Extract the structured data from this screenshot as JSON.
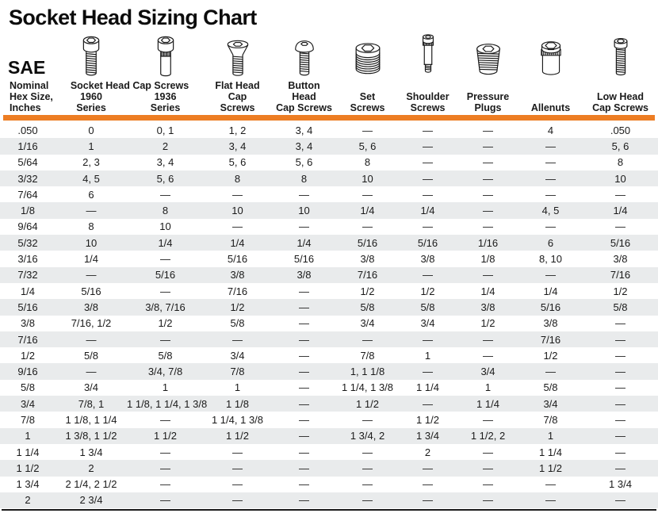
{
  "title": "Socket Head Sizing Chart",
  "standard_label": "SAE",
  "colors": {
    "accent": "#ED7D23",
    "stripe": "#E9EBEC",
    "rule": "#1a1a1a"
  },
  "header": {
    "group_label": "Socket Head Cap Screws",
    "columns": [
      {
        "id": "hex-size",
        "lines": [
          "Nominal",
          "Hex Size,",
          "Inches"
        ],
        "icon": null
      },
      {
        "id": "series-1960",
        "lines": [
          "",
          "1960",
          "Series"
        ],
        "icon": "socket-head-cap-screw-1960"
      },
      {
        "id": "series-1936",
        "lines": [
          "",
          "1936",
          "Series"
        ],
        "icon": "socket-head-cap-screw-1936"
      },
      {
        "id": "flat-head",
        "lines": [
          "Flat Head",
          "Cap",
          "Screws"
        ],
        "icon": "flat-head-cap-screw"
      },
      {
        "id": "button-head",
        "lines": [
          "Button",
          "Head",
          "Cap Screws"
        ],
        "icon": "button-head-cap-screw"
      },
      {
        "id": "set-screws",
        "lines": [
          "",
          "Set",
          "Screws"
        ],
        "icon": "set-screw"
      },
      {
        "id": "shoulder-screws",
        "lines": [
          "",
          "Shoulder",
          "Screws"
        ],
        "icon": "shoulder-screw"
      },
      {
        "id": "pressure-plugs",
        "lines": [
          "",
          "Pressure",
          "Plugs"
        ],
        "icon": "pressure-plug"
      },
      {
        "id": "allenuts",
        "lines": [
          "",
          "",
          "Allenuts"
        ],
        "icon": "allenut"
      },
      {
        "id": "low-head",
        "lines": [
          "",
          "Low Head",
          "Cap Screws"
        ],
        "icon": "low-head-cap-screw"
      }
    ]
  },
  "rows": [
    [
      ".050",
      "0",
      "0, 1",
      "1, 2",
      "3, 4",
      "—",
      "—",
      "—",
      "4",
      ".050"
    ],
    [
      "1/16",
      "1",
      "2",
      "3, 4",
      "3, 4",
      "5, 6",
      "—",
      "—",
      "—",
      "5, 6"
    ],
    [
      "5/64",
      "2, 3",
      "3, 4",
      "5, 6",
      "5, 6",
      "8",
      "—",
      "—",
      "—",
      "8"
    ],
    [
      "3/32",
      "4, 5",
      "5, 6",
      "8",
      "8",
      "10",
      "—",
      "—",
      "—",
      "10"
    ],
    [
      "7/64",
      "6",
      "—",
      "—",
      "—",
      "—",
      "—",
      "—",
      "—",
      "—"
    ],
    [
      "1/8",
      "—",
      "8",
      "10",
      "10",
      "1/4",
      "1/4",
      "—",
      "4, 5",
      "1/4"
    ],
    [
      "9/64",
      "8",
      "10",
      "—",
      "—",
      "—",
      "—",
      "—",
      "—",
      "—"
    ],
    [
      "5/32",
      "10",
      "1/4",
      "1/4",
      "1/4",
      "5/16",
      "5/16",
      "1/16",
      "6",
      "5/16"
    ],
    [
      "3/16",
      "1/4",
      "—",
      "5/16",
      "5/16",
      "3/8",
      "3/8",
      "1/8",
      "8, 10",
      "3/8"
    ],
    [
      "7/32",
      "—",
      "5/16",
      "3/8",
      "3/8",
      "7/16",
      "—",
      "—",
      "—",
      "7/16"
    ],
    [
      "1/4",
      "5/16",
      "—",
      "7/16",
      "—",
      "1/2",
      "1/2",
      "1/4",
      "1/4",
      "1/2"
    ],
    [
      "5/16",
      "3/8",
      "3/8, 7/16",
      "1/2",
      "—",
      "5/8",
      "5/8",
      "3/8",
      "5/16",
      "5/8"
    ],
    [
      "3/8",
      "7/16, 1/2",
      "1/2",
      "5/8",
      "—",
      "3/4",
      "3/4",
      "1/2",
      "3/8",
      "—"
    ],
    [
      "7/16",
      "—",
      "—",
      "—",
      "—",
      "—",
      "—",
      "—",
      "7/16",
      "—"
    ],
    [
      "1/2",
      "5/8",
      "5/8",
      "3/4",
      "—",
      "7/8",
      "1",
      "—",
      "1/2",
      "—"
    ],
    [
      "9/16",
      "—",
      "3/4, 7/8",
      "7/8",
      "—",
      "1, 1 1/8",
      "—",
      "3/4",
      "—",
      "—"
    ],
    [
      "5/8",
      "3/4",
      "1",
      "1",
      "—",
      "1 1/4, 1 3/8",
      "1 1/4",
      "1",
      "5/8",
      "—"
    ],
    [
      "3/4",
      "7/8, 1",
      "1 1/8, 1 1/4, 1 3/8",
      "1 1/8",
      "—",
      "1 1/2",
      "—",
      "1 1/4",
      "3/4",
      "—"
    ],
    [
      "7/8",
      "1 1/8, 1 1/4",
      "—",
      "1 1/4, 1 3/8",
      "—",
      "—",
      "1 1/2",
      "—",
      "7/8",
      "—"
    ],
    [
      "1",
      "1 3/8, 1 1/2",
      "1 1/2",
      "1 1/2",
      "—",
      "1 3/4, 2",
      "1 3/4",
      "1 1/2, 2",
      "1",
      "—"
    ],
    [
      "1 1/4",
      "1 3/4",
      "—",
      "—",
      "—",
      "—",
      "2",
      "—",
      "1 1/4",
      "—"
    ],
    [
      "1 1/2",
      "2",
      "—",
      "—",
      "—",
      "—",
      "—",
      "—",
      "1 1/2",
      "—"
    ],
    [
      "1 3/4",
      "2 1/4, 2 1/2",
      "—",
      "—",
      "—",
      "—",
      "—",
      "—",
      "—",
      "1 3/4"
    ],
    [
      "2",
      "2 3/4",
      "—",
      "—",
      "—",
      "—",
      "—",
      "—",
      "—",
      "—"
    ]
  ]
}
